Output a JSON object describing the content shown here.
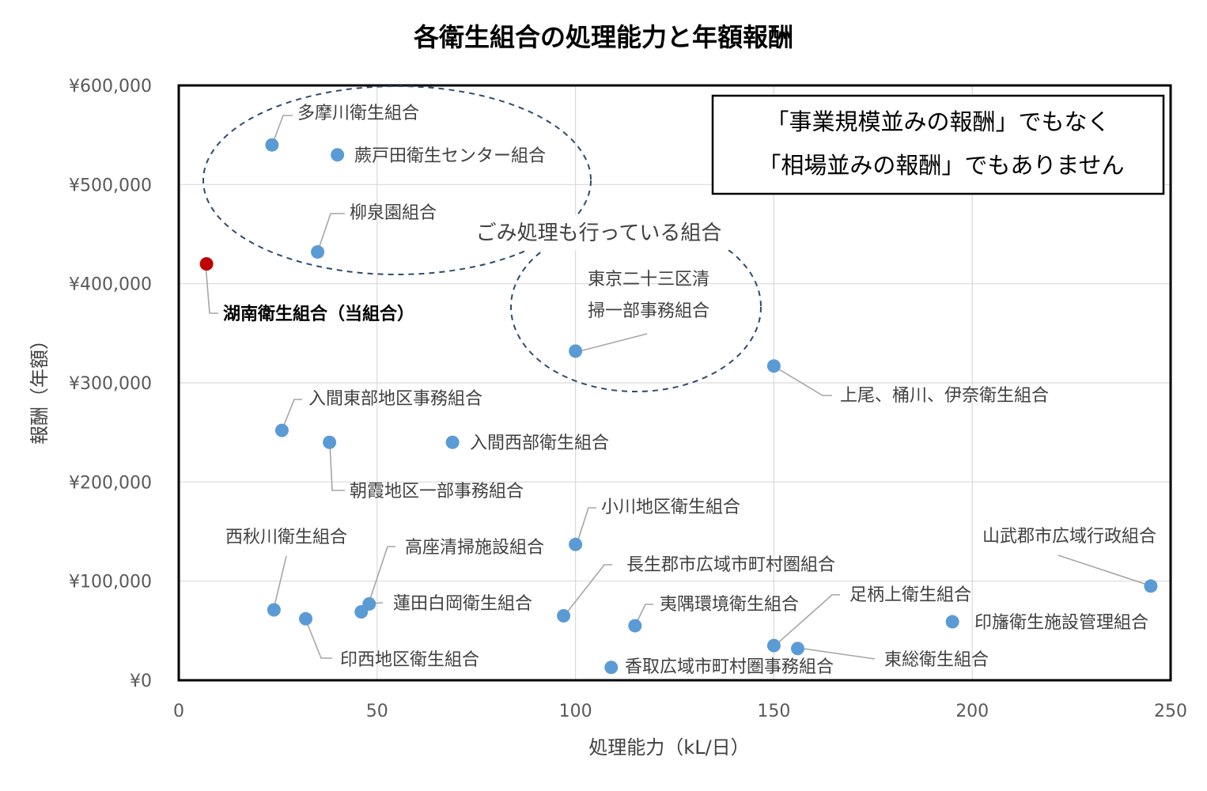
{
  "chart_data": {
    "type": "scatter",
    "title": "各衛生組合の処理能力と年額報酬",
    "xlabel": "処理能力（kL/日）",
    "ylabel": "報酬（年額）",
    "xlim": [
      0,
      250
    ],
    "ylim": [
      0,
      600000
    ],
    "x_ticks": [
      {
        "value": 0,
        "label": "0"
      },
      {
        "value": 50,
        "label": "50"
      },
      {
        "value": 100,
        "label": "100"
      },
      {
        "value": 150,
        "label": "150"
      },
      {
        "value": 200,
        "label": "200"
      },
      {
        "value": 250,
        "label": "250"
      }
    ],
    "y_ticks": [
      {
        "value": 0,
        "label": "¥0"
      },
      {
        "value": 100000,
        "label": "¥100,000"
      },
      {
        "value": 200000,
        "label": "¥200,000"
      },
      {
        "value": 300000,
        "label": "¥300,000"
      },
      {
        "value": 400000,
        "label": "¥400,000"
      },
      {
        "value": 500000,
        "label": "¥500,000"
      },
      {
        "value": 600000,
        "label": "¥600,000"
      }
    ],
    "grid": true,
    "colors": {
      "default": "#5b9bd5",
      "highlight": "#c00000",
      "ellipse": "#2f4b6e"
    },
    "points": [
      {
        "name": "多摩川衛生組合",
        "x": 23.5,
        "y": 540000
      },
      {
        "name": "蕨戸田衛生センター組合",
        "x": 40,
        "y": 530000
      },
      {
        "name": "柳泉園組合",
        "x": 35,
        "y": 432000
      },
      {
        "name": "湖南衛生組合（当組合）",
        "x": 7,
        "y": 420000,
        "highlight": true
      },
      {
        "name": "東京二十三区清掃一部事務組合",
        "x": 100,
        "y": 332000
      },
      {
        "name": "上尾、桶川、伊奈衛生組合",
        "x": 150,
        "y": 317000
      },
      {
        "name": "入間東部地区事務組合",
        "x": 26,
        "y": 252000
      },
      {
        "name": "入間西部衛生組合",
        "x": 69,
        "y": 240000
      },
      {
        "name": "朝霞地区一部事務組合",
        "x": 38,
        "y": 240000
      },
      {
        "name": "小川地区衛生組合",
        "x": 100,
        "y": 137000
      },
      {
        "name": "山武郡市広域行政組合",
        "x": 245,
        "y": 95000
      },
      {
        "name": "西秋川衛生組合",
        "x": 24,
        "y": 71000
      },
      {
        "name": "高座清掃施設組合",
        "x": 48,
        "y": 77000
      },
      {
        "name": "蓮田白岡衛生組合",
        "x": 46,
        "y": 69000
      },
      {
        "name": "印西地区衛生組合",
        "x": 32,
        "y": 62000
      },
      {
        "name": "長生郡市広域市町村圏組合",
        "x": 97,
        "y": 65000
      },
      {
        "name": "夷隅環境衛生組合",
        "x": 115,
        "y": 55000
      },
      {
        "name": "足柄上衛生組合",
        "x": 150,
        "y": 35000
      },
      {
        "name": "印旛衛生施設管理組合",
        "x": 195,
        "y": 59000
      },
      {
        "name": "東総衛生組合",
        "x": 156,
        "y": 32000
      },
      {
        "name": "香取広域市町村圏事務組合",
        "x": 109,
        "y": 13000
      }
    ],
    "annotations": {
      "group_label": "ごみ処理も行っている組合",
      "callout_lines": [
        "「事業規模並みの報酬」でもなく",
        "「相場並みの報酬」でもありません"
      ]
    }
  }
}
